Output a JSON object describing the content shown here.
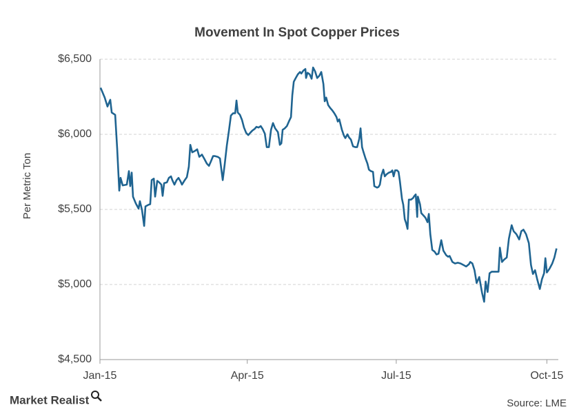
{
  "chart_data": {
    "type": "line",
    "title": "Movement In Spot Copper Prices",
    "y_label": "Per Metric Ton",
    "brand": "Market Realist",
    "source": "Source: LME",
    "color": "#1f6491",
    "grid": true,
    "x": [
      0.4,
      2.9,
      4.6,
      6.3,
      7.2,
      9.3,
      10.5,
      11.8,
      12.6,
      13.9,
      16.4,
      17.7,
      18.5,
      19.4,
      20.2,
      21.9,
      23.6,
      24.4,
      25.7,
      27.0,
      27.8,
      29.5,
      30.7,
      31.6,
      32.9,
      33.7,
      35.0,
      36.2,
      37.5,
      38.3,
      39.2,
      40.9,
      42.1,
      43.4,
      44.2,
      45.5,
      46.8,
      48.0,
      49.3,
      50.1,
      51.8,
      53.1,
      54.3,
      55.2,
      56.4,
      58.1,
      59.4,
      60.7,
      62.3,
      63.6,
      65.3,
      66.6,
      67.8,
      69.1,
      70.3,
      72.0,
      73.3,
      75.0,
      76.2,
      77.5,
      78.8,
      80.0,
      81.3,
      82.6,
      83.4,
      84.2,
      85.5,
      86.8,
      88.0,
      89.3,
      90.6,
      91.8,
      93.1,
      94.4,
      95.6,
      96.9,
      98.2,
      99.4,
      100.7,
      101.9,
      103.2,
      104.5,
      105.7,
      107.0,
      108.7,
      109.9,
      110.8,
      111.6,
      112.9,
      114.2,
      115.4,
      116.7,
      117.5,
      118.4,
      119.6,
      120.9,
      122.2,
      123.0,
      124.3,
      125.5,
      125.9,
      126.8,
      128.1,
      129.3,
      130.2,
      131.4,
      132.7,
      134.0,
      135.2,
      136.5,
      137.3,
      138.2,
      139.4,
      140.7,
      141.9,
      143.2,
      144.5,
      145.3,
      146.2,
      147.0,
      147.8,
      149.1,
      149.9,
      151.2,
      152.1,
      153.3,
      154.6,
      155.9,
      157.1,
      158.4,
      159.2,
      160.1,
      160.9,
      162.2,
      163.4,
      164.3,
      165.5,
      166.8,
      167.6,
      169.3,
      170.2,
      171.0,
      171.9,
      173.1,
      174.0,
      175.2,
      176.5,
      177.8,
      178.6,
      179.4,
      180.3,
      181.5,
      182.4,
      183.2,
      184.5,
      185.3,
      186.2,
      187.0,
      187.9,
      188.7,
      190.0,
      191.2,
      192.1,
      192.9,
      193.8,
      194.2,
      195.5,
      196.3,
      197.6,
      198.8,
      200.1,
      200.9,
      201.8,
      203.0,
      204.3,
      205.6,
      206.8,
      208.5,
      209.8,
      211.5,
      212.7,
      213.6,
      215.3,
      216.9,
      218.6,
      220.3,
      222.0,
      223.7,
      225.4,
      226.2,
      227.5,
      228.8,
      230.1,
      231.7,
      233.4,
      234.7,
      235.6,
      236.8,
      238.0,
      239.3,
      241.4,
      243.5,
      244.3,
      245.6,
      246.8,
      248.5,
      249.8,
      251.5,
      252.7,
      254.4,
      256.1,
      257.4,
      258.7,
      260.3,
      262.0,
      263.3,
      264.5,
      265.8,
      267.1,
      268.7,
      270.0,
      271.3,
      272.1,
      273.0,
      274.6,
      276.3,
      277.6,
      278.9
    ],
    "values": [
      6310,
      6245,
      6185,
      6230,
      6145,
      6130,
      5910,
      5625,
      5710,
      5660,
      5665,
      5755,
      5655,
      5745,
      5585,
      5540,
      5505,
      5555,
      5495,
      5390,
      5520,
      5530,
      5535,
      5695,
      5705,
      5585,
      5690,
      5680,
      5665,
      5590,
      5675,
      5680,
      5710,
      5720,
      5695,
      5665,
      5695,
      5710,
      5685,
      5665,
      5695,
      5715,
      5785,
      5930,
      5880,
      5890,
      5900,
      5850,
      5865,
      5840,
      5805,
      5790,
      5820,
      5855,
      5855,
      5850,
      5840,
      5695,
      5800,
      5925,
      6025,
      6125,
      6140,
      6140,
      6225,
      6145,
      6130,
      6095,
      6045,
      6010,
      5995,
      6010,
      6025,
      6035,
      6050,
      6045,
      6055,
      6035,
      6005,
      5915,
      5915,
      6030,
      6075,
      6040,
      6015,
      5930,
      5940,
      6030,
      6040,
      6055,
      6085,
      6115,
      6260,
      6350,
      6375,
      6400,
      6415,
      6405,
      6425,
      6435,
      6375,
      6410,
      6400,
      6370,
      6445,
      6420,
      6375,
      6390,
      6415,
      6335,
      6220,
      6245,
      6195,
      6175,
      6160,
      6140,
      6115,
      6085,
      6100,
      6065,
      6030,
      5990,
      5975,
      6000,
      5980,
      5965,
      5920,
      5915,
      5915,
      5970,
      6040,
      5915,
      5885,
      5840,
      5805,
      5765,
      5755,
      5750,
      5655,
      5645,
      5650,
      5665,
      5725,
      5765,
      5720,
      5735,
      5745,
      5750,
      5760,
      5720,
      5760,
      5760,
      5750,
      5690,
      5570,
      5530,
      5435,
      5410,
      5370,
      5565,
      5565,
      5575,
      5590,
      5600,
      5450,
      5585,
      5535,
      5475,
      5460,
      5445,
      5415,
      5470,
      5335,
      5230,
      5220,
      5200,
      5205,
      5295,
      5225,
      5195,
      5185,
      5190,
      5150,
      5140,
      5145,
      5140,
      5130,
      5120,
      5135,
      5150,
      5140,
      5095,
      5010,
      5050,
      4945,
      4885,
      5020,
      4950,
      5075,
      5085,
      5085,
      5085,
      5245,
      5150,
      5165,
      5180,
      5305,
      5395,
      5355,
      5335,
      5300,
      5355,
      5365,
      5335,
      5275,
      5130,
      5070,
      5095,
      5035,
      4970,
      5035,
      5075,
      5175,
      5080,
      5105,
      5140,
      5180,
      5240
    ],
    "xlim": [
      0,
      280
    ],
    "xticks": [
      {
        "value": 0,
        "label": "Jan-15"
      },
      {
        "value": 90,
        "label": "Apr-15"
      },
      {
        "value": 181,
        "label": "Jul-15"
      },
      {
        "value": 273,
        "label": "Oct-15"
      }
    ],
    "ylim": [
      4500,
      6500
    ],
    "yticks": [
      {
        "value": 4500,
        "label": "$4,500"
      },
      {
        "value": 5000,
        "label": "$5,000"
      },
      {
        "value": 5500,
        "label": "$5,500"
      },
      {
        "value": 6000,
        "label": "$6,000"
      },
      {
        "value": 6500,
        "label": "$6,500"
      }
    ]
  }
}
